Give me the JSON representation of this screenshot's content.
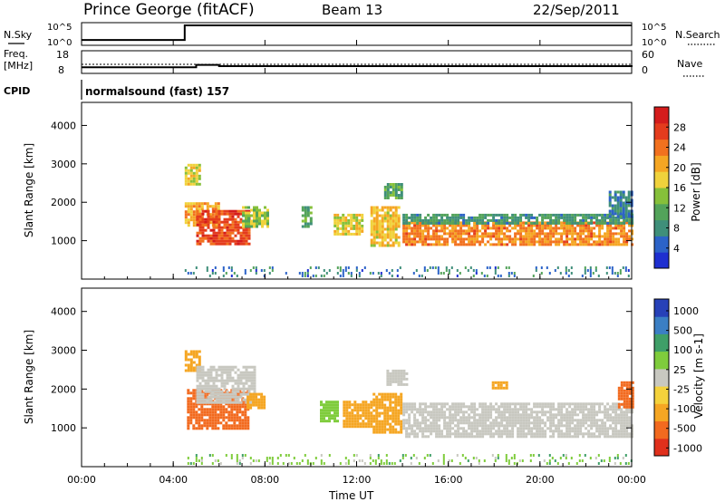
{
  "header": {
    "station": "Prince George (fitACF)",
    "beam": "Beam 13",
    "date": "22/Sep/2011"
  },
  "chart_data": [
    {
      "type": "line",
      "panel": "noise",
      "left_label": "N.Sky",
      "right_label": "N.Search",
      "left_ticks": [
        "10^5",
        "10^0"
      ],
      "right_ticks": [
        "10^5",
        "10^0"
      ],
      "x": [
        0.0,
        0.8,
        4.5,
        5.5,
        6.5,
        8,
        10,
        12,
        14,
        16,
        18,
        20,
        22,
        24
      ],
      "values": [
        1,
        1,
        7.0,
        6.6,
        6.4,
        6.0,
        5.8,
        5.7,
        5.6,
        5.5,
        5.4,
        5.4,
        5.3,
        5.6
      ]
    },
    {
      "type": "line",
      "panel": "frequency",
      "left_label": "Freq.",
      "left_unit": "[MHz]",
      "right_label": "Nave",
      "left_ticks": [
        "18",
        "8"
      ],
      "right_ticks": [
        "60",
        "0"
      ],
      "x": [
        0.0,
        0.8,
        4.5,
        5.0,
        6.0,
        24.0
      ],
      "values": [
        10.6,
        10.6,
        10.6,
        11.8,
        11.2,
        10.8
      ]
    },
    {
      "type": "text",
      "panel": "cpid",
      "label": "CPID",
      "program": "normalsound (fast) 157"
    },
    {
      "type": "heatmap",
      "panel": "power",
      "ylabel": "Slant Range [km]",
      "ylim": [
        0,
        4600
      ],
      "yticks": [
        "1000",
        "2000",
        "3000",
        "4000"
      ],
      "xlim": [
        0,
        24
      ],
      "colorbar": {
        "label": "Power [dB]",
        "ticks": [
          "4",
          "8",
          "12",
          "16",
          "20",
          "24",
          "28"
        ],
        "colors": [
          "#1e2fd0",
          "#2c63c8",
          "#3f8f7a",
          "#53a35a",
          "#86c03a",
          "#f0d23c",
          "#f5a623",
          "#f2711f",
          "#e43c1d",
          "#d41c1c"
        ]
      },
      "regions": [
        {
          "t0": 4.5,
          "t1": 5.1,
          "r0": 2500,
          "r1": 3000,
          "level": 16
        },
        {
          "t0": 4.5,
          "t1": 6.0,
          "r0": 1400,
          "r1": 2000,
          "level": 20
        },
        {
          "t0": 5.0,
          "t1": 7.3,
          "r0": 950,
          "r1": 1800,
          "level": 26
        },
        {
          "t0": 7.0,
          "t1": 8.1,
          "r0": 1400,
          "r1": 1900,
          "level": 14
        },
        {
          "t0": 9.6,
          "t1": 10.0,
          "r0": 1400,
          "r1": 1900,
          "level": 10
        },
        {
          "t0": 11.0,
          "t1": 12.3,
          "r0": 1150,
          "r1": 1700,
          "level": 16
        },
        {
          "t0": 12.6,
          "t1": 13.8,
          "r0": 900,
          "r1": 1900,
          "level": 18
        },
        {
          "t0": 13.2,
          "t1": 14.0,
          "r0": 2100,
          "r1": 2500,
          "level": 10
        },
        {
          "t0": 14.0,
          "t1": 24.0,
          "r0": 900,
          "r1": 1500,
          "level": 22
        },
        {
          "t0": 14.0,
          "t1": 24.0,
          "r0": 1450,
          "r1": 1700,
          "level": 8
        },
        {
          "t0": 23.0,
          "t1": 24.0,
          "r0": 1600,
          "r1": 2300,
          "level": 6
        }
      ]
    },
    {
      "type": "heatmap",
      "panel": "velocity",
      "ylabel": "Slant Range [km]",
      "ylim": [
        0,
        4600
      ],
      "yticks": [
        "1000",
        "2000",
        "3000",
        "4000"
      ],
      "xlim": [
        0,
        24
      ],
      "xticks": [
        "00:00",
        "04:00",
        "08:00",
        "12:00",
        "16:00",
        "20:00",
        "00:00"
      ],
      "xlabel": "Time UT",
      "colorbar": {
        "label": "Velocity [m s-1]",
        "ticks": [
          "1000",
          "500",
          "100",
          "25",
          "-25",
          "-100",
          "-500",
          "-1000"
        ],
        "colors": [
          "#2741b8",
          "#3b7fc4",
          "#3f9f68",
          "#7fcc3c",
          "#c8c8c0",
          "#f4d23c",
          "#f5a623",
          "#f26a1f",
          "#e0301c"
        ]
      },
      "regions": [
        {
          "t0": 4.5,
          "t1": 5.1,
          "r0": 2500,
          "r1": 3000,
          "level": -300
        },
        {
          "t0": 4.6,
          "t1": 7.3,
          "r0": 950,
          "r1": 2000,
          "level": -400
        },
        {
          "t0": 5.0,
          "t1": 7.5,
          "r0": 1650,
          "r1": 2600,
          "level": 0
        },
        {
          "t0": 7.2,
          "t1": 8.0,
          "r0": 1500,
          "r1": 1900,
          "level": -200
        },
        {
          "t0": 10.4,
          "t1": 11.2,
          "r0": 1200,
          "r1": 1700,
          "level": 80
        },
        {
          "t0": 11.4,
          "t1": 12.7,
          "r0": 1050,
          "r1": 1700,
          "level": -300
        },
        {
          "t0": 12.7,
          "t1": 14.0,
          "r0": 900,
          "r1": 1900,
          "level": -250
        },
        {
          "t0": 13.3,
          "t1": 14.2,
          "r0": 2100,
          "r1": 2500,
          "level": 0
        },
        {
          "t0": 14.0,
          "t1": 24.0,
          "r0": 800,
          "r1": 1650,
          "level": 0
        },
        {
          "t0": 17.9,
          "t1": 18.5,
          "r0": 2000,
          "r1": 2200,
          "level": -300
        },
        {
          "t0": 23.4,
          "t1": 24.0,
          "r0": 1500,
          "r1": 2200,
          "level": -350
        }
      ]
    }
  ]
}
